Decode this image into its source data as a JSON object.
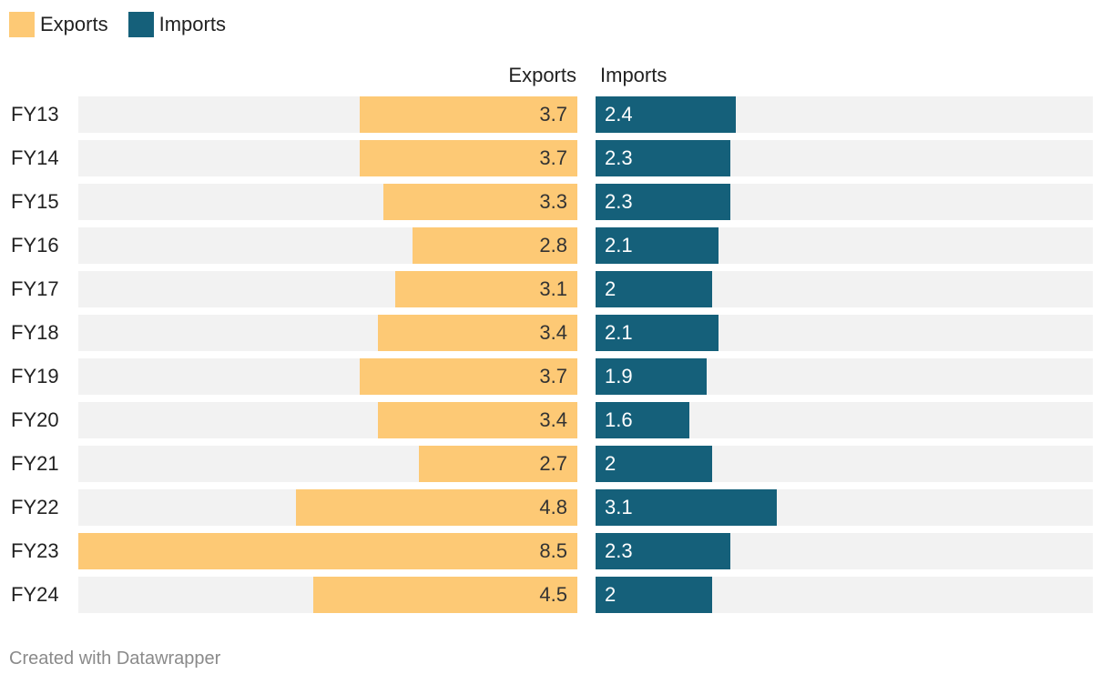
{
  "legend": [
    {
      "label": "Exports",
      "color": "#fdc975"
    },
    {
      "label": "Imports",
      "color": "#15607a"
    }
  ],
  "chart_data": {
    "type": "bar",
    "orientation": "horizontal",
    "layout": "split-columns",
    "categories": [
      "FY13",
      "FY14",
      "FY15",
      "FY16",
      "FY17",
      "FY18",
      "FY19",
      "FY20",
      "FY21",
      "FY22",
      "FY23",
      "FY24"
    ],
    "series": [
      {
        "name": "Exports",
        "color": "#fdc975",
        "label_color": "#333333",
        "values": [
          3.7,
          3.7,
          3.3,
          2.8,
          3.1,
          3.4,
          3.7,
          3.4,
          2.7,
          4.8,
          8.5,
          4.5
        ],
        "max": 8.5
      },
      {
        "name": "Imports",
        "color": "#15607a",
        "label_color": "#ffffff",
        "values": [
          2.4,
          2.3,
          2.3,
          2.1,
          2,
          2.1,
          1.9,
          1.6,
          2,
          3.1,
          2.3,
          2
        ],
        "max": 8.5
      }
    ],
    "column_headers": [
      "Exports",
      "Imports"
    ]
  },
  "footer": "Created with Datawrapper"
}
